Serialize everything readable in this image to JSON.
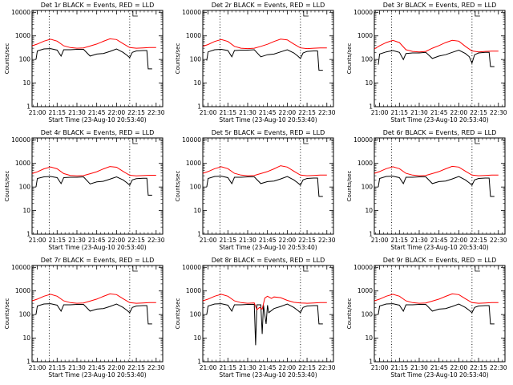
{
  "chart_data": {
    "type": "line",
    "layout": "3x3 grid",
    "xlabel": "Start Time (23-Aug-10 20:53:40)",
    "ylabel": "Counts/sec",
    "x_tick_labels": [
      "21:00",
      "21:15",
      "21:30",
      "21:45",
      "22:00",
      "22:15",
      "22:30"
    ],
    "x_tick_minutes": [
      0,
      15,
      30,
      45,
      60,
      75,
      90
    ],
    "x_range_minutes_from_21_00": [
      -4,
      95
    ],
    "y_scale": "log",
    "y_tick_labels": [
      "1",
      "10",
      "100",
      "1000",
      "10000"
    ],
    "y_tick_values": [
      1,
      10,
      100,
      1000,
      10000
    ],
    "y_range": [
      1,
      12000
    ],
    "colors": {
      "events": "#000000",
      "lld": "#ff0000"
    },
    "marker_lines_minutes": [
      9,
      70
    ],
    "panels": [
      {
        "title": "Det 1r BLACK = Events, RED = LLD",
        "series": [
          {
            "name": "Events",
            "color": "#000000",
            "x": [
              -1,
              0,
              5,
              10,
              15,
              18,
              20,
              25,
              30,
              35,
              40,
              45,
              50,
              55,
              60,
              65,
              68,
              70,
              72,
              75,
              80,
              83,
              84,
              87
            ],
            "y": [
              100,
              230,
              280,
              290,
              250,
              140,
              260,
              260,
              270,
              270,
              140,
              170,
              180,
              220,
              280,
              200,
              150,
              120,
              200,
              230,
              240,
              240,
              40,
              40
            ]
          },
          {
            "name": "LLD",
            "color": "#ff0000",
            "x": [
              -4,
              0,
              5,
              10,
              15,
              20,
              25,
              30,
              35,
              40,
              45,
              50,
              55,
              60,
              65,
              70,
              75,
              80,
              85,
              90
            ],
            "y": [
              380,
              450,
              600,
              720,
              600,
              380,
              320,
              300,
              310,
              370,
              450,
              590,
              750,
              700,
              470,
              320,
              300,
              310,
              320,
              320
            ]
          }
        ]
      },
      {
        "title": "Det 2r BLACK = Events, RED = LLD",
        "series": [
          {
            "name": "Events",
            "color": "#000000",
            "x": [
              -1,
              0,
              5,
              10,
              15,
              18,
              20,
              25,
              30,
              35,
              40,
              45,
              50,
              55,
              60,
              65,
              68,
              70,
              72,
              75,
              80,
              83,
              84,
              87
            ],
            "y": [
              90,
              210,
              260,
              270,
              240,
              130,
              240,
              250,
              250,
              260,
              130,
              160,
              170,
              210,
              260,
              190,
              140,
              110,
              190,
              220,
              230,
              230,
              35,
              35
            ]
          },
          {
            "name": "LLD",
            "color": "#ff0000",
            "x": [
              -4,
              0,
              5,
              10,
              15,
              20,
              25,
              30,
              35,
              40,
              45,
              50,
              55,
              60,
              65,
              70,
              75,
              80,
              85,
              90
            ],
            "y": [
              360,
              430,
              580,
              700,
              580,
              360,
              300,
              290,
              300,
              360,
              440,
              580,
              730,
              680,
              450,
              310,
              290,
              300,
              310,
              310
            ]
          }
        ]
      },
      {
        "title": "Det 3r BLACK = Events, RED = LLD",
        "series": [
          {
            "name": "Events",
            "color": "#000000",
            "x": [
              -1,
              0,
              5,
              10,
              15,
              18,
              20,
              25,
              30,
              35,
              40,
              45,
              50,
              55,
              60,
              65,
              68,
              70,
              72,
              75,
              80,
              83,
              84,
              87
            ],
            "y": [
              60,
              170,
              210,
              240,
              200,
              100,
              180,
              190,
              190,
              200,
              110,
              140,
              160,
              200,
              250,
              180,
              130,
              70,
              160,
              190,
              200,
              200,
              50,
              50
            ]
          },
          {
            "name": "LLD",
            "color": "#ff0000",
            "x": [
              -4,
              0,
              5,
              10,
              15,
              20,
              25,
              30,
              35,
              40,
              45,
              50,
              55,
              60,
              65,
              70,
              75,
              80,
              85,
              90
            ],
            "y": [
              280,
              380,
              520,
              650,
              520,
              260,
              220,
              210,
              220,
              300,
              390,
              520,
              650,
              600,
              360,
              230,
              210,
              220,
              225,
              225
            ]
          }
        ]
      },
      {
        "title": "Det 4r BLACK = Events, RED = LLD",
        "series": [
          {
            "name": "Events",
            "color": "#000000",
            "x": [
              -1,
              0,
              5,
              10,
              15,
              18,
              20,
              25,
              30,
              35,
              40,
              45,
              50,
              55,
              60,
              65,
              68,
              70,
              72,
              75,
              80,
              83,
              84,
              87
            ],
            "y": [
              100,
              230,
              270,
              280,
              250,
              140,
              250,
              260,
              260,
              270,
              135,
              165,
              175,
              215,
              270,
              200,
              150,
              120,
              200,
              225,
              235,
              235,
              45,
              45
            ]
          },
          {
            "name": "LLD",
            "color": "#ff0000",
            "x": [
              -4,
              0,
              5,
              10,
              15,
              20,
              25,
              30,
              35,
              40,
              45,
              50,
              55,
              60,
              65,
              70,
              75,
              80,
              85,
              90
            ],
            "y": [
              370,
              440,
              590,
              710,
              590,
              370,
              310,
              295,
              305,
              365,
              445,
              585,
              740,
              690,
              460,
              315,
              295,
              305,
              315,
              315
            ]
          }
        ]
      },
      {
        "title": "Det 5r BLACK = Events, RED = LLD",
        "series": [
          {
            "name": "Events",
            "color": "#000000",
            "x": [
              -1,
              0,
              5,
              10,
              15,
              18,
              20,
              25,
              30,
              35,
              40,
              45,
              50,
              55,
              60,
              65,
              68,
              70,
              72,
              75,
              80,
              83,
              84,
              87
            ],
            "y": [
              100,
              230,
              280,
              290,
              250,
              140,
              260,
              260,
              270,
              270,
              140,
              170,
              180,
              220,
              280,
              200,
              150,
              120,
              200,
              230,
              240,
              240,
              40,
              40
            ]
          },
          {
            "name": "LLD",
            "color": "#ff0000",
            "x": [
              -4,
              0,
              5,
              10,
              15,
              20,
              25,
              30,
              35,
              40,
              45,
              50,
              55,
              60,
              65,
              70,
              75,
              80,
              85,
              90
            ],
            "y": [
              380,
              450,
              600,
              720,
              600,
              380,
              320,
              300,
              310,
              370,
              450,
              590,
              800,
              700,
              470,
              320,
              300,
              310,
              320,
              320
            ]
          }
        ]
      },
      {
        "title": "Det 6r BLACK = Events, RED = LLD",
        "series": [
          {
            "name": "Events",
            "color": "#000000",
            "x": [
              -1,
              0,
              5,
              10,
              15,
              18,
              20,
              25,
              30,
              35,
              40,
              45,
              50,
              55,
              60,
              65,
              68,
              70,
              72,
              75,
              80,
              83,
              84,
              87
            ],
            "y": [
              100,
              230,
              280,
              290,
              250,
              140,
              260,
              260,
              270,
              270,
              140,
              170,
              180,
              220,
              280,
              200,
              150,
              120,
              200,
              230,
              240,
              240,
              40,
              40
            ]
          },
          {
            "name": "LLD",
            "color": "#ff0000",
            "x": [
              -4,
              0,
              5,
              10,
              15,
              20,
              25,
              30,
              35,
              40,
              45,
              50,
              55,
              60,
              65,
              70,
              75,
              80,
              85,
              90
            ],
            "y": [
              380,
              450,
              600,
              720,
              600,
              380,
              320,
              300,
              310,
              370,
              450,
              590,
              750,
              700,
              470,
              320,
              300,
              310,
              320,
              320
            ]
          }
        ]
      },
      {
        "title": "Det 7r BLACK = Events, RED = LLD",
        "series": [
          {
            "name": "Events",
            "color": "#000000",
            "x": [
              -1,
              0,
              5,
              10,
              15,
              18,
              20,
              25,
              30,
              35,
              40,
              45,
              50,
              55,
              60,
              65,
              68,
              70,
              72,
              75,
              80,
              83,
              84,
              87
            ],
            "y": [
              100,
              230,
              280,
              290,
              250,
              140,
              260,
              260,
              270,
              270,
              140,
              170,
              180,
              220,
              280,
              200,
              150,
              120,
              200,
              230,
              240,
              240,
              40,
              40
            ]
          },
          {
            "name": "LLD",
            "color": "#ff0000",
            "x": [
              -4,
              0,
              5,
              10,
              15,
              20,
              25,
              30,
              35,
              40,
              45,
              50,
              55,
              60,
              65,
              70,
              75,
              80,
              85,
              90
            ],
            "y": [
              380,
              450,
              600,
              720,
              600,
              380,
              320,
              300,
              310,
              370,
              450,
              590,
              750,
              700,
              470,
              320,
              300,
              310,
              320,
              320
            ]
          }
        ]
      },
      {
        "title": "Det 8r BLACK = Events, RED = LLD",
        "series": [
          {
            "name": "Events",
            "color": "#000000",
            "x": [
              -1,
              0,
              5,
              10,
              15,
              18,
              20,
              25,
              30,
              35,
              36,
              37,
              40,
              41,
              42,
              44,
              45,
              46,
              50,
              55,
              60,
              65,
              68,
              70,
              72,
              75,
              80,
              83,
              84,
              87
            ],
            "y": [
              100,
              230,
              280,
              290,
              250,
              140,
              260,
              260,
              270,
              270,
              5,
              260,
              260,
              15,
              250,
              40,
              250,
              120,
              180,
              220,
              280,
              200,
              150,
              120,
              200,
              230,
              240,
              240,
              40,
              40
            ]
          },
          {
            "name": "LLD",
            "color": "#ff0000",
            "x": [
              -4,
              0,
              5,
              10,
              15,
              20,
              25,
              30,
              35,
              37,
              39,
              41,
              43,
              45,
              48,
              50,
              55,
              60,
              65,
              70,
              75,
              80,
              85,
              90
            ],
            "y": [
              380,
              450,
              600,
              720,
              600,
              380,
              320,
              300,
              310,
              160,
              200,
              170,
              500,
              600,
              480,
              560,
              520,
              400,
              330,
              310,
              300,
              310,
              320,
              320
            ]
          }
        ]
      },
      {
        "title": "Det 9r BLACK = Events, RED = LLD",
        "series": [
          {
            "name": "Events",
            "color": "#000000",
            "x": [
              -1,
              0,
              5,
              10,
              15,
              18,
              20,
              25,
              30,
              35,
              40,
              45,
              50,
              55,
              60,
              65,
              68,
              70,
              72,
              75,
              80,
              83,
              84,
              87
            ],
            "y": [
              100,
              230,
              280,
              290,
              250,
              140,
              260,
              260,
              270,
              270,
              140,
              170,
              180,
              220,
              280,
              200,
              150,
              120,
              200,
              230,
              240,
              240,
              40,
              40
            ]
          },
          {
            "name": "LLD",
            "color": "#ff0000",
            "x": [
              -4,
              0,
              5,
              10,
              15,
              20,
              25,
              30,
              35,
              40,
              45,
              50,
              55,
              60,
              65,
              70,
              75,
              80,
              85,
              90
            ],
            "y": [
              380,
              450,
              600,
              720,
              600,
              380,
              320,
              300,
              310,
              370,
              450,
              590,
              750,
              700,
              470,
              320,
              300,
              310,
              320,
              320
            ]
          }
        ]
      }
    ]
  }
}
